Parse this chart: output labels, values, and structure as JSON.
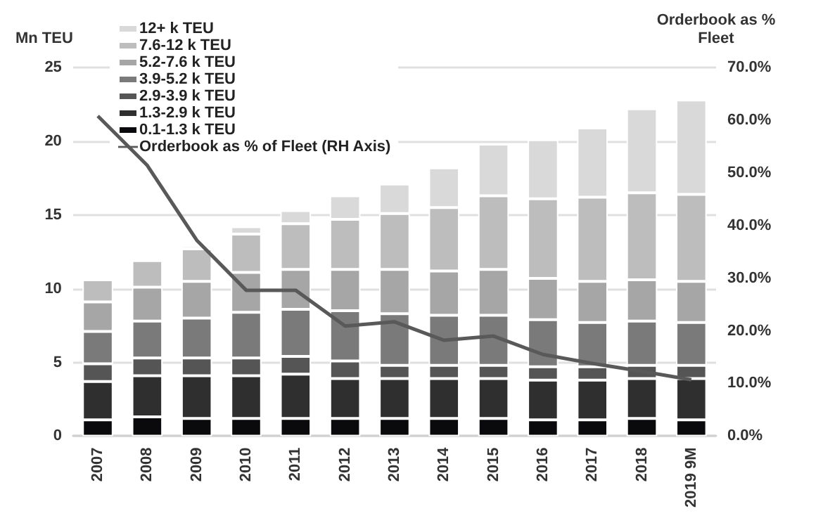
{
  "chart_data": {
    "type": "bar",
    "stacked": true,
    "ylabel": "Mn TEU",
    "y2label": "Orderbook as % Fleet",
    "categories": [
      "2007",
      "2008",
      "2009",
      "2010",
      "2011",
      "2012",
      "2013",
      "2014",
      "2015",
      "2016",
      "2017",
      "2018",
      "2019 9M"
    ],
    "series": [
      {
        "name": "0.1-1.3 k TEU",
        "color": "#0a0a0c",
        "values": [
          1.1,
          1.3,
          1.2,
          1.2,
          1.2,
          1.2,
          1.2,
          1.2,
          1.2,
          1.1,
          1.1,
          1.2,
          1.1
        ]
      },
      {
        "name": "1.3-2.9 k TEU",
        "color": "#2f2f2f",
        "values": [
          2.6,
          2.8,
          2.9,
          2.9,
          3.0,
          2.7,
          2.7,
          2.7,
          2.7,
          2.7,
          2.7,
          2.7,
          2.8
        ]
      },
      {
        "name": "2.9-3.9 k TEU",
        "color": "#555555",
        "values": [
          1.2,
          1.2,
          1.2,
          1.2,
          1.2,
          1.2,
          0.9,
          0.9,
          0.9,
          0.9,
          0.9,
          0.9,
          0.9
        ]
      },
      {
        "name": "3.9-5.2 k TEU",
        "color": "#7a7a7a",
        "values": [
          2.2,
          2.5,
          2.7,
          3.1,
          3.2,
          3.4,
          3.5,
          3.4,
          3.4,
          3.2,
          3.0,
          3.0,
          2.9
        ]
      },
      {
        "name": "5.2-7.6 k TEU",
        "color": "#a6a6a6",
        "values": [
          2.0,
          2.3,
          2.5,
          2.7,
          2.7,
          2.8,
          3.0,
          3.0,
          3.1,
          2.8,
          2.8,
          2.8,
          2.8
        ]
      },
      {
        "name": "7.6-12 k TEU",
        "color": "#bdbdbd",
        "values": [
          1.5,
          1.8,
          2.2,
          2.6,
          3.1,
          3.4,
          3.8,
          4.3,
          5.0,
          5.4,
          5.7,
          5.9,
          5.9
        ]
      },
      {
        "name": "12+ k TEU",
        "color": "#d9d9d9",
        "values": [
          0,
          0.1,
          0.2,
          0.5,
          0.9,
          1.6,
          2.0,
          2.7,
          3.5,
          4.0,
          4.7,
          5.7,
          6.4
        ]
      },
      {
        "name": "Orderbook as % of Fleet (RH Axis)",
        "type": "line",
        "axis": "y2",
        "color": "#595959",
        "values": [
          60.8,
          51.4,
          37.2,
          27.7,
          27.7,
          20.9,
          21.7,
          18.2,
          19.0,
          15.5,
          13.8,
          12.3,
          10.7
        ]
      }
    ],
    "ylim": [
      0,
      25
    ],
    "yticks": [
      0,
      5,
      10,
      15,
      20,
      25
    ],
    "y2lim": [
      0,
      70
    ],
    "y2ticks": [
      {
        "value": 0,
        "label": "0.0%"
      },
      {
        "value": 10,
        "label": "10.0%"
      },
      {
        "value": 20,
        "label": "20.0%"
      },
      {
        "value": 30,
        "label": "30.0%"
      },
      {
        "value": 40,
        "label": "40.0%"
      },
      {
        "value": 50,
        "label": "50.0%"
      },
      {
        "value": 60,
        "label": "60.0%"
      },
      {
        "value": 70,
        "label": "70.0%"
      }
    ],
    "grid": "y",
    "legend": "top left",
    "marker": "none",
    "line_style": "solid"
  }
}
